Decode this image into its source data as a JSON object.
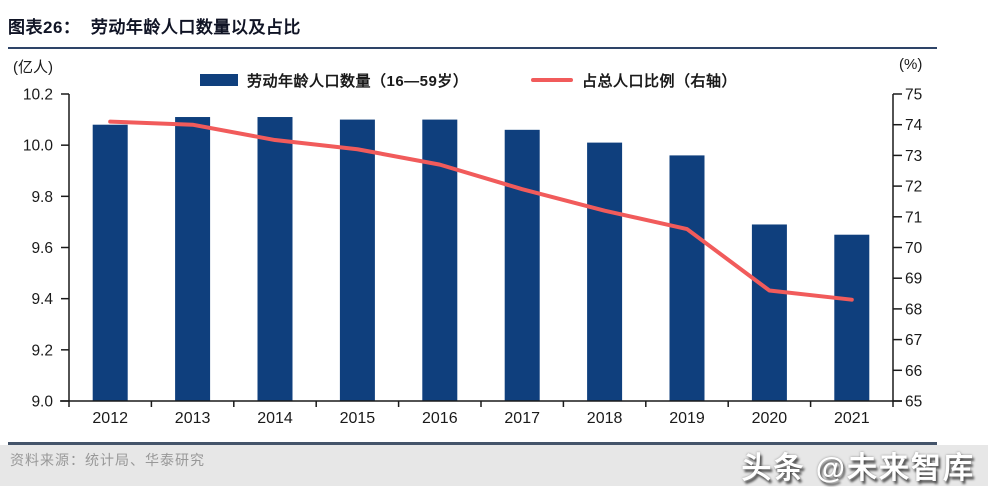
{
  "header": {
    "title": "图表26：  劳动年龄人口数量以及占比"
  },
  "axes_units": {
    "left": "(亿人)",
    "right": "(%)"
  },
  "legend": {
    "items": [
      {
        "label": "劳动年龄人口数量（16—59岁）",
        "swatch": "bar"
      },
      {
        "label": "占总人口比例（右轴）",
        "swatch": "line"
      }
    ]
  },
  "chart_data": {
    "type": "bar+line",
    "title": "劳动年龄人口数量以及占比",
    "categories": [
      "2012",
      "2013",
      "2014",
      "2015",
      "2016",
      "2017",
      "2018",
      "2019",
      "2020",
      "2021"
    ],
    "series": [
      {
        "name": "劳动年龄人口数量（16—59岁）",
        "type": "bar",
        "axis": "left",
        "unit": "亿人",
        "values": [
          10.08,
          10.11,
          10.11,
          10.1,
          10.1,
          10.06,
          10.01,
          9.96,
          9.69,
          9.65
        ]
      },
      {
        "name": "占总人口比例（右轴）",
        "type": "line",
        "axis": "right",
        "unit": "%",
        "values": [
          74.1,
          74.0,
          73.5,
          73.2,
          72.7,
          71.9,
          71.2,
          70.6,
          68.6,
          68.3
        ]
      }
    ],
    "left_axis": {
      "unit": "(亿人)",
      "min": 9.0,
      "max": 10.2,
      "step": 0.2,
      "tick_labels": [
        "10.2",
        "10.0",
        "9.8",
        "9.6",
        "9.4",
        "9.2",
        "9.0"
      ]
    },
    "right_axis": {
      "unit": "(%)",
      "min": 65,
      "max": 75,
      "step": 1,
      "tick_labels": [
        "75",
        "74",
        "73",
        "72",
        "71",
        "70",
        "69",
        "68",
        "67",
        "66",
        "65"
      ]
    },
    "legend_position": "top",
    "grid": false
  },
  "colors": {
    "bar": "#0f3f7d",
    "line": "#f15b5b",
    "axis": "#1a1a1a",
    "title_rule": "#2e4468",
    "footer_rule": "#44546a",
    "footer_bg": "#e7e7e7",
    "source_text": "#989898",
    "watermark_text": "#ffffff"
  },
  "footer": {
    "source": "资料来源：统计局、华泰研究",
    "watermark": "头条 @未来智库"
  }
}
